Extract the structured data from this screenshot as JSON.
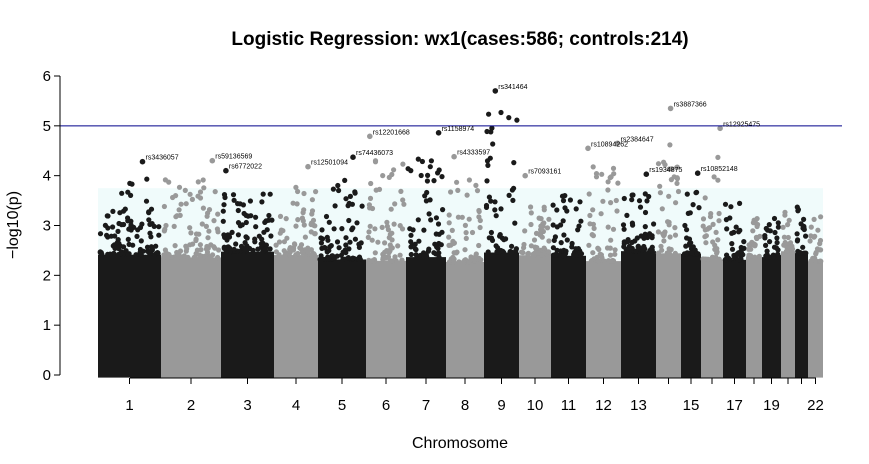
{
  "chart_data": {
    "type": "scatter",
    "title": "Logistic Regression: wx1(cases:586; controls:214)",
    "xlabel": "Chromosome",
    "ylabel": "−log10(p)",
    "ylim": [
      0,
      6
    ],
    "yticks": [
      0,
      1,
      2,
      3,
      4,
      5,
      6
    ],
    "significance_line": 5,
    "line_color": "#00008b",
    "colors": {
      "odd": "#1a1a1a",
      "even": "#999999",
      "band": "#f0fbfb"
    },
    "chromosome_labels": [
      "1",
      "2",
      "3",
      "4",
      "5",
      "6",
      "7",
      "8",
      "9",
      "10",
      "11",
      "12",
      "13",
      "15",
      "17",
      "19",
      "22"
    ],
    "chromosomes": [
      {
        "chr": "1",
        "start": 98,
        "end": 161,
        "top": 4.3
      },
      {
        "chr": "2",
        "start": 161,
        "end": 221,
        "top": 4.3
      },
      {
        "chr": "3",
        "start": 221,
        "end": 274,
        "top": 4.1
      },
      {
        "chr": "4",
        "start": 274,
        "end": 318,
        "top": 4.15
      },
      {
        "chr": "5",
        "start": 318,
        "end": 366,
        "top": 4.35
      },
      {
        "chr": "6",
        "start": 366,
        "end": 406,
        "top": 4.8
      },
      {
        "chr": "7",
        "start": 406,
        "end": 446,
        "top": 4.85
      },
      {
        "chr": "8",
        "start": 446,
        "end": 484,
        "top": 4.4
      },
      {
        "chr": "9",
        "start": 484,
        "end": 519,
        "top": 5.7
      },
      {
        "chr": "10",
        "start": 519,
        "end": 551,
        "top": 4.0
      },
      {
        "chr": "11",
        "start": 551,
        "end": 586,
        "top": 4.0
      },
      {
        "chr": "12",
        "start": 586,
        "end": 621,
        "top": 4.55
      },
      {
        "chr": "13",
        "start": 621,
        "end": 656,
        "top": 4.05
      },
      {
        "chr": "14",
        "start": 656,
        "end": 681,
        "top": 5.35
      },
      {
        "chr": "15",
        "start": 681,
        "end": 701,
        "top": 4.05
      },
      {
        "chr": "16",
        "start": 701,
        "end": 723,
        "top": 4.95
      },
      {
        "chr": "17",
        "start": 723,
        "end": 746,
        "top": 3.85
      },
      {
        "chr": "18",
        "start": 746,
        "end": 762,
        "top": 3.5
      },
      {
        "chr": "19",
        "start": 762,
        "end": 781,
        "top": 3.6
      },
      {
        "chr": "20",
        "start": 781,
        "end": 795,
        "top": 3.7
      },
      {
        "chr": "21",
        "start": 795,
        "end": 808,
        "top": 3.75
      },
      {
        "chr": "22",
        "start": 808,
        "end": 823,
        "top": 3.55
      }
    ],
    "annotations": [
      {
        "label": "rs3436057",
        "chr": "1",
        "pos": 0.72,
        "y": 4.28
      },
      {
        "label": "rs59136569",
        "chr": "2",
        "pos": 0.88,
        "y": 4.3
      },
      {
        "label": "rs6772022",
        "chr": "3",
        "pos": 0.06,
        "y": 4.1
      },
      {
        "label": "rs12501094",
        "chr": "4",
        "pos": 0.8,
        "y": 4.18
      },
      {
        "label": "rs74436073",
        "chr": "5",
        "pos": 0.75,
        "y": 4.37
      },
      {
        "label": "rs12201668",
        "chr": "6",
        "pos": 0.05,
        "y": 4.79
      },
      {
        "label": "rs1158974",
        "chr": "7",
        "pos": 0.85,
        "y": 4.86
      },
      {
        "label": "rs4333597",
        "chr": "8",
        "pos": 0.18,
        "y": 4.38
      },
      {
        "label": "rs341464",
        "chr": "9",
        "pos": 0.3,
        "y": 5.7
      },
      {
        "label": "rs7093161",
        "chr": "10",
        "pos": 0.15,
        "y": 4.0
      },
      {
        "label": "rs10894262",
        "chr": "12",
        "pos": 0.0,
        "y": 4.55
      },
      {
        "label": "rs2384647",
        "chr": "12",
        "pos": 0.95,
        "y": 4.65
      },
      {
        "label": "rs1934875",
        "chr": "13",
        "pos": 0.75,
        "y": 4.03
      },
      {
        "label": "rs3887366",
        "chr": "14",
        "pos": 0.6,
        "y": 5.35
      },
      {
        "label": "rs10852148",
        "chr": "15",
        "pos": 0.92,
        "y": 4.05
      },
      {
        "label": "rs12925475",
        "chr": "16",
        "pos": 0.95,
        "y": 4.95
      }
    ]
  }
}
